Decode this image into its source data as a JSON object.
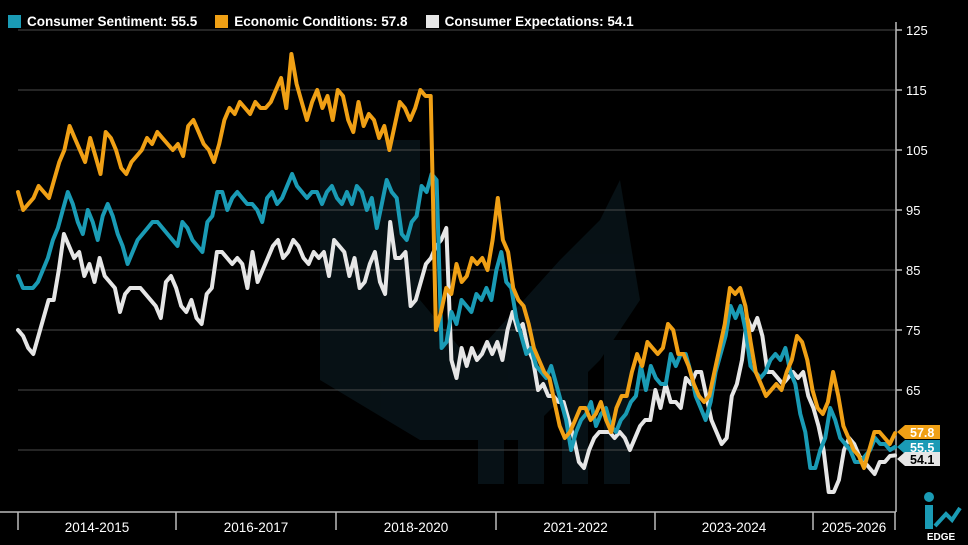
{
  "legend": [
    {
      "label": "Consumer Sentiment: 55.5",
      "color": "#1a9bb5"
    },
    {
      "label": "Economic Conditions: 57.8",
      "color": "#f0a015"
    },
    {
      "label": "Consumer Expectations: 54.1",
      "color": "#e6e6e6"
    }
  ],
  "watermark_text": "EDGE",
  "chart_data": {
    "type": "line",
    "title": "",
    "xlabel": "",
    "ylabel": "",
    "ylim": [
      47,
      127
    ],
    "yticks": [
      125,
      115,
      105,
      95,
      85,
      75,
      65
    ],
    "grid": true,
    "legend_position": "top",
    "period_labels": [
      "2014-2015",
      "2016-2017",
      "2018-2020",
      "2021-2022",
      "2023-2024",
      "2025-2026"
    ],
    "end_labels": [
      {
        "series": "Economic Conditions",
        "text": "57.8",
        "value": 57.8,
        "color": "#f0a015"
      },
      {
        "series": "Consumer Sentiment",
        "text": "55.5",
        "value": 55.5,
        "color": "#1a9bb5"
      },
      {
        "series": "Consumer Expectations",
        "text": "54.1",
        "value": 54.1,
        "color": "#e6e6e6"
      }
    ],
    "series": [
      {
        "name": "Consumer Sentiment",
        "color": "#1a9bb5",
        "values": [
          84,
          82,
          82,
          82,
          83,
          85,
          87,
          90,
          92,
          95,
          98,
          96,
          93,
          91,
          95,
          93,
          90,
          94,
          96,
          94,
          91,
          89,
          86,
          88,
          90,
          91,
          92,
          93,
          93,
          92,
          91,
          90,
          89,
          93,
          92,
          90,
          89,
          88,
          93,
          94,
          98,
          98,
          95,
          97,
          98,
          97,
          96,
          96,
          95,
          93,
          97,
          98,
          96,
          97,
          99,
          101,
          99,
          98,
          97,
          98,
          98,
          96,
          98,
          99,
          97,
          96,
          98,
          96,
          99,
          98,
          95,
          97,
          92,
          96,
          100,
          98,
          97,
          91,
          90,
          93,
          94,
          99,
          98,
          101,
          100,
          72,
          73,
          78,
          76,
          80,
          79,
          78,
          81,
          80,
          82,
          80,
          85,
          88,
          83,
          82,
          77,
          74,
          71,
          72,
          69,
          68,
          67,
          69,
          66,
          63,
          60,
          55,
          58,
          60,
          61,
          63,
          59,
          61,
          62,
          59,
          58,
          60,
          61,
          63,
          64,
          69,
          65,
          69,
          67,
          66,
          66,
          71,
          69,
          71,
          71,
          68,
          64,
          62,
          60,
          63,
          68,
          71,
          74,
          79,
          77,
          79,
          75,
          69,
          68,
          67,
          68,
          70,
          71,
          70,
          72,
          68,
          66,
          61,
          58,
          52,
          52,
          55,
          57,
          62,
          60,
          57,
          56,
          55,
          53,
          53,
          54,
          55,
          57,
          56,
          56,
          55,
          55.5
        ]
      },
      {
        "name": "Economic Conditions",
        "color": "#f0a015",
        "values": [
          98,
          95,
          96,
          97,
          99,
          98,
          97,
          100,
          103,
          105,
          109,
          107,
          105,
          103,
          107,
          104,
          101,
          108,
          107,
          105,
          102,
          101,
          103,
          104,
          105,
          107,
          106,
          108,
          107,
          106,
          105,
          106,
          104,
          109,
          110,
          108,
          106,
          105,
          103,
          106,
          110,
          112,
          111,
          113,
          112,
          111,
          113,
          112,
          112,
          113,
          115,
          117,
          112,
          121,
          116,
          113,
          110,
          113,
          115,
          112,
          114,
          110,
          115,
          114,
          110,
          108,
          113,
          109,
          111,
          110,
          107,
          109,
          105,
          109,
          113,
          112,
          110,
          112,
          115,
          114,
          114,
          75,
          78,
          82,
          81,
          86,
          83,
          84,
          87,
          86,
          87,
          85,
          90,
          97,
          90,
          88,
          82,
          80,
          79,
          76,
          72,
          70,
          68,
          67,
          63,
          59,
          57,
          58,
          60,
          62,
          62,
          60,
          61,
          63,
          60,
          58,
          62,
          64,
          64,
          68,
          71,
          69,
          73,
          72,
          71,
          72,
          76,
          75,
          71,
          71,
          69,
          66,
          64,
          63,
          64,
          68,
          72,
          76,
          82,
          81,
          82,
          79,
          73,
          68,
          66,
          64,
          65,
          66,
          65,
          68,
          70,
          74,
          73,
          70,
          65,
          62,
          61,
          63,
          68,
          64,
          59,
          57,
          55,
          54,
          52,
          55,
          58,
          58,
          57,
          56,
          57.8
        ]
      },
      {
        "name": "Consumer Expectations",
        "color": "#e6e6e6",
        "values": [
          75,
          74,
          72,
          71,
          74,
          77,
          80,
          80,
          85,
          91,
          89,
          87,
          88,
          84,
          86,
          83,
          87,
          84,
          83,
          82,
          78,
          81,
          82,
          82,
          82,
          81,
          80,
          79,
          77,
          83,
          84,
          82,
          79,
          78,
          80,
          77,
          76,
          81,
          82,
          88,
          88,
          87,
          86,
          87,
          86,
          82,
          88,
          83,
          85,
          87,
          89,
          90,
          87,
          88,
          90,
          89,
          87,
          86,
          88,
          87,
          88,
          84,
          90,
          89,
          88,
          84,
          87,
          82,
          83,
          86,
          88,
          83,
          81,
          93,
          87,
          87,
          88,
          79,
          80,
          83,
          86,
          87,
          89,
          90,
          92,
          70,
          67,
          72,
          69,
          72,
          70,
          71,
          73,
          71,
          73,
          70,
          75,
          78,
          75,
          76,
          72,
          70,
          65,
          66,
          64,
          64,
          63,
          63,
          60,
          57,
          53,
          52,
          55,
          57,
          58,
          58,
          58,
          57,
          58,
          57,
          55,
          57,
          59,
          60,
          60,
          65,
          62,
          66,
          63,
          63,
          62,
          67,
          66,
          68,
          68,
          64,
          60,
          58,
          56,
          57,
          64,
          66,
          70,
          77,
          75,
          77,
          74,
          68,
          68,
          67,
          66,
          67,
          68,
          67,
          68,
          64,
          62,
          59,
          55,
          48,
          48,
          50,
          55,
          57,
          56,
          54,
          53,
          52,
          51,
          53,
          53,
          54,
          54.1
        ]
      }
    ]
  }
}
